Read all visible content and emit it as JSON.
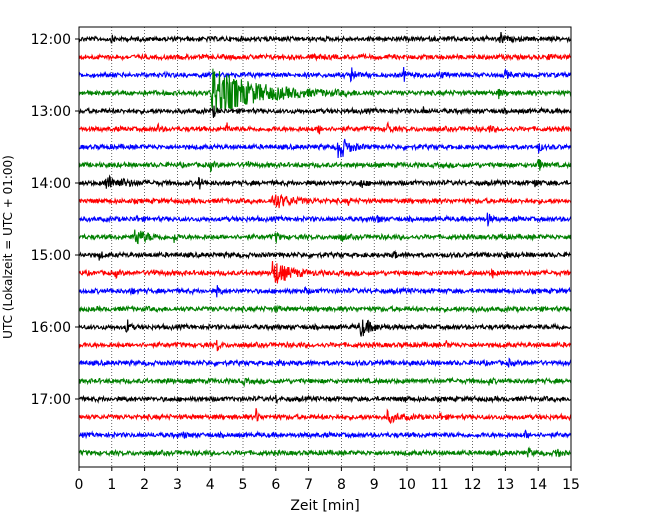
{
  "chart_data": {
    "type": "line",
    "title": "",
    "xlabel": "Zeit  [min]",
    "ylabel": "UTC (Lokalzeit = UTC + 01:00)",
    "xlim": [
      0,
      15
    ],
    "x_ticks": [
      "0",
      "1",
      "2",
      "3",
      "4",
      "5",
      "6",
      "7",
      "8",
      "9",
      "10",
      "11",
      "12",
      "13",
      "14",
      "15"
    ],
    "y_ticks": [
      {
        "row": 0,
        "label": "12:00"
      },
      {
        "row": 4,
        "label": "13:00"
      },
      {
        "row": 8,
        "label": "14:00"
      },
      {
        "row": 12,
        "label": "15:00"
      },
      {
        "row": 16,
        "label": "16:00"
      },
      {
        "row": 20,
        "label": "17:00"
      }
    ],
    "grid": "vertical dotted",
    "row_interval_minutes": 15,
    "color_cycle": [
      "#000000",
      "#ff0000",
      "#0000ff",
      "#008000"
    ],
    "rows": [
      {
        "start": "12:00",
        "events": [
          {
            "t": 1.0,
            "a": 0.3
          },
          {
            "t": 12.85,
            "a": 0.9
          }
        ]
      },
      {
        "start": "12:15",
        "events": [
          {
            "t": 7.2,
            "a": 0.5
          },
          {
            "t": 14.3,
            "a": 0.3
          }
        ]
      },
      {
        "start": "12:30",
        "events": [
          {
            "t": 8.3,
            "a": 1.1
          },
          {
            "t": 9.9,
            "a": 0.6
          },
          {
            "t": 11.0,
            "a": 0.4
          },
          {
            "t": 13.0,
            "a": 0.5
          }
        ]
      },
      {
        "start": "12:45",
        "events": [
          {
            "t": 4.05,
            "a": 2.5,
            "dur": 2.0
          },
          {
            "t": 12.8,
            "a": 0.4
          }
        ]
      },
      {
        "start": "13:00",
        "events": [
          {
            "t": 4.1,
            "a": 0.5
          },
          {
            "t": 10.5,
            "a": 0.3
          }
        ]
      },
      {
        "start": "13:15",
        "events": [
          {
            "t": 2.4,
            "a": 0.4
          },
          {
            "t": 4.5,
            "a": 0.5
          },
          {
            "t": 7.3,
            "a": 0.6
          },
          {
            "t": 9.4,
            "a": 0.7
          },
          {
            "t": 12.5,
            "a": 0.4
          }
        ]
      },
      {
        "start": "13:30",
        "events": [
          {
            "t": 7.9,
            "a": 1.4,
            "dur": 0.4
          },
          {
            "t": 14.0,
            "a": 0.6
          }
        ]
      },
      {
        "start": "13:45",
        "events": [
          {
            "t": 4.0,
            "a": 0.5
          },
          {
            "t": 5.1,
            "a": 0.5
          },
          {
            "t": 14.0,
            "a": 0.9
          }
        ]
      },
      {
        "start": "14:00",
        "events": [
          {
            "t": 0.8,
            "a": 0.7,
            "dur": 0.8
          },
          {
            "t": 3.65,
            "a": 0.7
          },
          {
            "t": 8.6,
            "a": 0.6
          },
          {
            "t": 13.9,
            "a": 0.5
          }
        ]
      },
      {
        "start": "14:15",
        "events": [
          {
            "t": 5.9,
            "a": 0.8,
            "dur": 0.8
          },
          {
            "t": 8.2,
            "a": 0.3
          }
        ]
      },
      {
        "start": "14:30",
        "events": [
          {
            "t": 1.7,
            "a": 0.4
          },
          {
            "t": 9.1,
            "a": 0.4
          },
          {
            "t": 12.45,
            "a": 0.7
          }
        ]
      },
      {
        "start": "14:45",
        "events": [
          {
            "t": 1.7,
            "a": 0.9,
            "dur": 0.5
          },
          {
            "t": 2.9,
            "a": 0.5
          },
          {
            "t": 6.0,
            "a": 0.6
          },
          {
            "t": 8.0,
            "a": 0.5
          },
          {
            "t": 12.9,
            "a": 0.4
          }
        ]
      },
      {
        "start": "15:00",
        "events": [
          {
            "t": 0.6,
            "a": 0.5
          },
          {
            "t": 9.6,
            "a": 0.4
          },
          {
            "t": 13.0,
            "a": 0.3
          }
        ]
      },
      {
        "start": "15:15",
        "events": [
          {
            "t": 1.1,
            "a": 0.4
          },
          {
            "t": 2.2,
            "a": 0.4
          },
          {
            "t": 5.9,
            "a": 1.3,
            "dur": 0.7
          },
          {
            "t": 12.6,
            "a": 0.4
          }
        ]
      },
      {
        "start": "15:30",
        "events": [
          {
            "t": 1.6,
            "a": 0.3
          },
          {
            "t": 4.2,
            "a": 0.7
          },
          {
            "t": 6.9,
            "a": 0.3
          }
        ]
      },
      {
        "start": "15:45",
        "events": [
          {
            "t": 6.0,
            "a": 0.3
          },
          {
            "t": 12.0,
            "a": 0.3
          }
        ]
      },
      {
        "start": "16:00",
        "events": [
          {
            "t": 1.45,
            "a": 0.9
          },
          {
            "t": 8.55,
            "a": 1.0,
            "dur": 0.5
          },
          {
            "t": 14.5,
            "a": 0.3
          }
        ]
      },
      {
        "start": "16:15",
        "events": [
          {
            "t": 4.2,
            "a": 0.6
          },
          {
            "t": 11.2,
            "a": 0.3
          }
        ]
      },
      {
        "start": "16:30",
        "events": [
          {
            "t": 6.1,
            "a": 0.3
          },
          {
            "t": 13.1,
            "a": 0.3
          }
        ]
      },
      {
        "start": "16:45",
        "events": [
          {
            "t": 2.7,
            "a": 0.3
          },
          {
            "t": 5.0,
            "a": 0.3
          },
          {
            "t": 12.5,
            "a": 0.3
          }
        ]
      },
      {
        "start": "17:00",
        "events": [
          {
            "t": 6.0,
            "a": 0.3
          },
          {
            "t": 9.9,
            "a": 0.3
          }
        ]
      },
      {
        "start": "17:15",
        "events": [
          {
            "t": 5.4,
            "a": 0.7
          },
          {
            "t": 9.4,
            "a": 0.5,
            "dur": 0.5
          },
          {
            "t": 11.0,
            "a": 0.3
          }
        ]
      },
      {
        "start": "17:30",
        "events": [
          {
            "t": 3.2,
            "a": 0.3
          },
          {
            "t": 13.6,
            "a": 0.4
          }
        ]
      },
      {
        "start": "17:45",
        "events": [
          {
            "t": 13.7,
            "a": 0.5
          },
          {
            "t": 14.55,
            "a": 0.7
          }
        ]
      }
    ]
  }
}
